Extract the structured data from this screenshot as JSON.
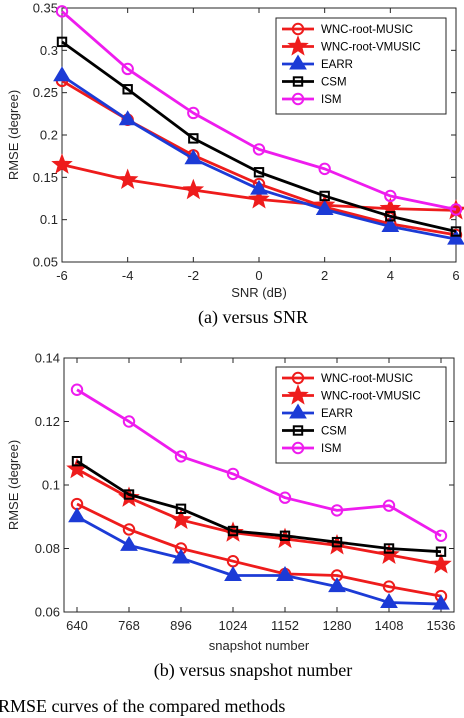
{
  "figure_caption": "RMSE curves of the compared methods",
  "chart_data": [
    {
      "type": "line",
      "caption": "(a) versus SNR",
      "xlabel": "SNR (dB)",
      "ylabel": "RMSE (degree)",
      "x": [
        -6,
        -4,
        -2,
        0,
        2,
        4,
        6
      ],
      "xticks": [
        "-6",
        "-4",
        "-2",
        "0",
        "2",
        "4",
        "6"
      ],
      "xlim": [
        -6,
        6
      ],
      "ylim": [
        0.05,
        0.35
      ],
      "yticks": [
        "0.05",
        "0.1",
        "0.15",
        "0.2",
        "0.25",
        "0.3",
        "0.35"
      ],
      "legend_position": "top-right",
      "series": [
        {
          "name": "WNC-root-MUSIC",
          "color": "#ee1c1c",
          "marker": "circle",
          "values": [
            0.264,
            0.218,
            0.176,
            0.142,
            0.115,
            0.095,
            0.082
          ]
        },
        {
          "name": "WNC-root-VMUSIC",
          "color": "#ee1c1c",
          "marker": "star",
          "values": [
            0.165,
            0.147,
            0.135,
            0.124,
            0.117,
            0.113,
            0.111
          ]
        },
        {
          "name": "EARR",
          "color": "#1c3bd6",
          "marker": "triangle",
          "values": [
            0.27,
            0.218,
            0.172,
            0.136,
            0.112,
            0.092,
            0.077
          ]
        },
        {
          "name": "CSM",
          "color": "#000000",
          "marker": "square",
          "values": [
            0.31,
            0.254,
            0.196,
            0.156,
            0.128,
            0.104,
            0.086
          ]
        },
        {
          "name": "ISM",
          "color": "#ee1cee",
          "marker": "circle",
          "values": [
            0.346,
            0.278,
            0.226,
            0.183,
            0.16,
            0.128,
            0.112
          ]
        }
      ]
    },
    {
      "type": "line",
      "caption": "(b) versus snapshot number",
      "xlabel": "snapshot number",
      "ylabel": "RMSE (degree)",
      "x": [
        640,
        768,
        896,
        1024,
        1152,
        1280,
        1408,
        1536
      ],
      "xticks": [
        "640",
        "768",
        "896",
        "1024",
        "1152",
        "1280",
        "1408",
        "1536"
      ],
      "xlim": [
        608,
        1568
      ],
      "ylim": [
        0.06,
        0.14
      ],
      "yticks": [
        "0.06",
        "0.08",
        "0.1",
        "0.12",
        "0.14"
      ],
      "legend_position": "top-right",
      "series": [
        {
          "name": "WNC-root-MUSIC",
          "color": "#ee1c1c",
          "marker": "circle",
          "values": [
            0.094,
            0.086,
            0.08,
            0.076,
            0.072,
            0.0715,
            0.068,
            0.065
          ]
        },
        {
          "name": "WNC-root-VMUSIC",
          "color": "#ee1c1c",
          "marker": "star",
          "values": [
            0.105,
            0.096,
            0.089,
            0.085,
            0.083,
            0.081,
            0.078,
            0.075
          ]
        },
        {
          "name": "EARR",
          "color": "#1c3bd6",
          "marker": "triangle",
          "values": [
            0.09,
            0.081,
            0.077,
            0.0715,
            0.0715,
            0.068,
            0.063,
            0.0625
          ]
        },
        {
          "name": "CSM",
          "color": "#000000",
          "marker": "square",
          "values": [
            0.1075,
            0.097,
            0.0925,
            0.0855,
            0.084,
            0.082,
            0.08,
            0.079
          ]
        },
        {
          "name": "ISM",
          "color": "#ee1cee",
          "marker": "circle",
          "values": [
            0.13,
            0.12,
            0.109,
            0.1035,
            0.096,
            0.092,
            0.0935,
            0.084
          ]
        }
      ]
    }
  ]
}
